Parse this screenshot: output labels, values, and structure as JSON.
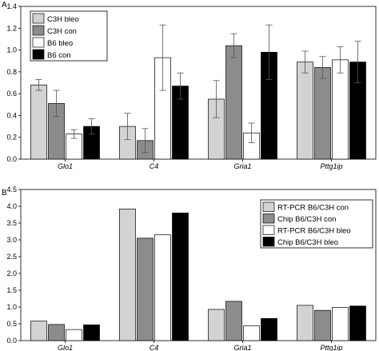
{
  "chart_data": [
    {
      "type": "bar",
      "panel_label": "A",
      "categories": [
        "Glo1",
        "C4",
        "Gria1",
        "Pttg1ip"
      ],
      "series": [
        {
          "name": "C3H bleo",
          "color": "#d3d3d3",
          "values": [
            0.68,
            0.3,
            0.55,
            0.89
          ],
          "errors": [
            0.05,
            0.12,
            0.17,
            0.1
          ]
        },
        {
          "name": "C3H con",
          "color": "#8c8c8c",
          "values": [
            0.51,
            0.17,
            1.04,
            0.84
          ],
          "errors": [
            0.12,
            0.11,
            0.11,
            0.1
          ]
        },
        {
          "name": "B6 bleo",
          "color": "#ffffff",
          "values": [
            0.23,
            0.93,
            0.24,
            0.91
          ],
          "errors": [
            0.04,
            0.3,
            0.09,
            0.12
          ]
        },
        {
          "name": "B6 con",
          "color": "#000000",
          "values": [
            0.3,
            0.67,
            0.98,
            0.89
          ],
          "errors": [
            0.07,
            0.12,
            0.25,
            0.19
          ]
        }
      ],
      "ylim": [
        0,
        1.4
      ],
      "yticks": [
        "0.0",
        "0.2",
        "0.4",
        "0.6",
        "0.8",
        "1.0",
        "1.2",
        "1.4"
      ],
      "legend_position": "top-left",
      "grid": false
    },
    {
      "type": "bar",
      "panel_label": "B",
      "categories": [
        "Glo1",
        "C4",
        "Gria1",
        "Pttg1ip"
      ],
      "series": [
        {
          "name": "RT-PCR B6/C3H con",
          "color": "#d3d3d3",
          "values": [
            0.58,
            3.92,
            0.93,
            1.05
          ]
        },
        {
          "name": "Chip B6/C3H con",
          "color": "#8c8c8c",
          "values": [
            0.48,
            3.05,
            1.17,
            0.9
          ]
        },
        {
          "name": "RT-PCR B6/C3H bleo",
          "color": "#ffffff",
          "values": [
            0.33,
            3.15,
            0.44,
            0.99
          ]
        },
        {
          "name": "Chip B6/C3H bleo",
          "color": "#000000",
          "values": [
            0.47,
            3.8,
            0.66,
            1.03
          ]
        }
      ],
      "ylim": [
        0,
        4.5
      ],
      "yticks": [
        "0.0",
        "0.5",
        "1.0",
        "1.5",
        "2.0",
        "2.5",
        "3.0",
        "3.5",
        "4.0",
        "4.5"
      ],
      "legend_position": "top-right",
      "grid": false
    }
  ]
}
